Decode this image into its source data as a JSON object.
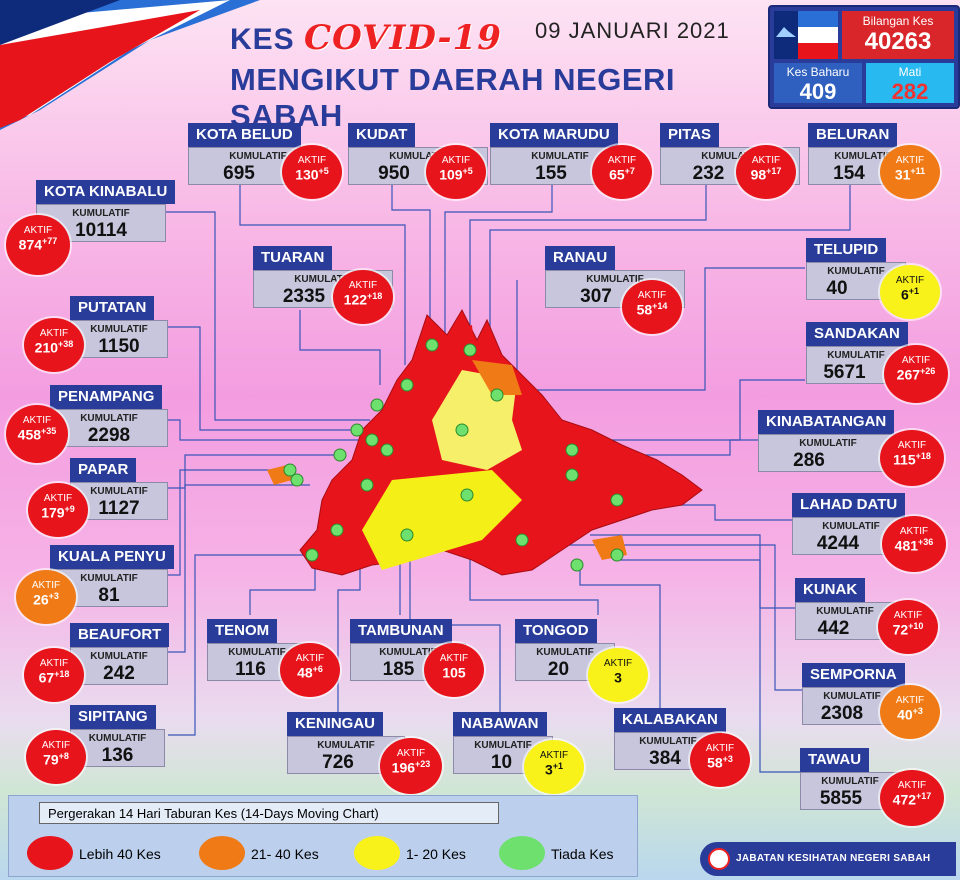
{
  "header": {
    "title_prefix": "KES",
    "title_covid": "COVID-19",
    "subtitle": "MENGIKUT DAERAH NEGERI SABAH",
    "date": "09 JANUARI 2021"
  },
  "stats": {
    "total_label": "Bilangan Kes",
    "total_value": "40263",
    "new_label": "Kes Baharu",
    "new_value": "409",
    "death_label": "Mati",
    "death_value": "282"
  },
  "labels": {
    "kumulatif": "KUMULATIF",
    "aktif": "AKTIF"
  },
  "colors": {
    "red": "#e8141c",
    "orange": "#f07a16",
    "yellow": "#f8f21a",
    "green": "#6ee06e",
    "navy": "#2a3c9a"
  },
  "districts": {
    "kota_belud": {
      "name": "KOTA BELUD",
      "kumulatif": "695",
      "aktif": "130",
      "aktif_new": "+5",
      "level": "red"
    },
    "kudat": {
      "name": "KUDAT",
      "kumulatif": "950",
      "aktif": "109",
      "aktif_new": "+5",
      "level": "red"
    },
    "kota_marudu": {
      "name": "KOTA MARUDU",
      "kumulatif": "155",
      "aktif": "65",
      "aktif_new": "+7",
      "level": "red"
    },
    "pitas": {
      "name": "PITAS",
      "kumulatif": "232",
      "aktif": "98",
      "aktif_new": "+17",
      "level": "red"
    },
    "beluran": {
      "name": "BELURAN",
      "kumulatif": "154",
      "aktif": "31",
      "aktif_new": "+11",
      "level": "orange"
    },
    "kota_kinabalu": {
      "name": "KOTA KINABALU",
      "kumulatif": "10114",
      "aktif": "874",
      "aktif_new": "+77",
      "level": "red"
    },
    "tuaran": {
      "name": "TUARAN",
      "kumulatif": "2335",
      "aktif": "122",
      "aktif_new": "+18",
      "level": "red"
    },
    "ranau": {
      "name": "RANAU",
      "kumulatif": "307",
      "aktif": "58",
      "aktif_new": "+14",
      "level": "red"
    },
    "telupid": {
      "name": "TELUPID",
      "kumulatif": "40",
      "aktif": "6",
      "aktif_new": "+1",
      "level": "yellow"
    },
    "putatan": {
      "name": "PUTATAN",
      "kumulatif": "1150",
      "aktif": "210",
      "aktif_new": "+38",
      "level": "red"
    },
    "sandakan": {
      "name": "SANDAKAN",
      "kumulatif": "5671",
      "aktif": "267",
      "aktif_new": "+26",
      "level": "red"
    },
    "penampang": {
      "name": "PENAMPANG",
      "kumulatif": "2298",
      "aktif": "458",
      "aktif_new": "+35",
      "level": "red"
    },
    "kinabatangan": {
      "name": "KINABATANGAN",
      "kumulatif": "286",
      "aktif": "115",
      "aktif_new": "+18",
      "level": "red"
    },
    "papar": {
      "name": "PAPAR",
      "kumulatif": "1127",
      "aktif": "179",
      "aktif_new": "+9",
      "level": "red"
    },
    "lahad_datu": {
      "name": "LAHAD DATU",
      "kumulatif": "4244",
      "aktif": "481",
      "aktif_new": "+36",
      "level": "red"
    },
    "kuala_penyu": {
      "name": "KUALA PENYU",
      "kumulatif": "81",
      "aktif": "26",
      "aktif_new": "+3",
      "level": "orange"
    },
    "kunak": {
      "name": "KUNAK",
      "kumulatif": "442",
      "aktif": "72",
      "aktif_new": "+10",
      "level": "red"
    },
    "beaufort": {
      "name": "BEAUFORT",
      "kumulatif": "242",
      "aktif": "67",
      "aktif_new": "+18",
      "level": "red"
    },
    "tenom": {
      "name": "TENOM",
      "kumulatif": "116",
      "aktif": "48",
      "aktif_new": "+6",
      "level": "red"
    },
    "tambunan": {
      "name": "TAMBUNAN",
      "kumulatif": "185",
      "aktif": "105",
      "aktif_new": "",
      "level": "red"
    },
    "tongod": {
      "name": "TONGOD",
      "kumulatif": "20",
      "aktif": "3",
      "aktif_new": "",
      "level": "yellow"
    },
    "semporna": {
      "name": "SEMPORNA",
      "kumulatif": "2308",
      "aktif": "40",
      "aktif_new": "+3",
      "level": "orange"
    },
    "sipitang": {
      "name": "SIPITANG",
      "kumulatif": "136",
      "aktif": "79",
      "aktif_new": "+8",
      "level": "red"
    },
    "keningau": {
      "name": "KENINGAU",
      "kumulatif": "726",
      "aktif": "196",
      "aktif_new": "+23",
      "level": "red"
    },
    "nabawan": {
      "name": "NABAWAN",
      "kumulatif": "10",
      "aktif": "3",
      "aktif_new": "+1",
      "level": "yellow"
    },
    "kalabakan": {
      "name": "KALABAKAN",
      "kumulatif": "384",
      "aktif": "58",
      "aktif_new": "+3",
      "level": "red"
    },
    "tawau": {
      "name": "TAWAU",
      "kumulatif": "5855",
      "aktif": "472",
      "aktif_new": "+17",
      "level": "red"
    }
  },
  "legend": {
    "title": "Pergerakan 14 Hari Taburan Kes (14-Days Moving Chart)",
    "items": [
      {
        "label": "Lebih 40 Kes",
        "color": "#e8141c"
      },
      {
        "label": "21- 40 Kes",
        "color": "#f07a16"
      },
      {
        "label": "1- 20 Kes",
        "color": "#f8f21a"
      },
      {
        "label": "Tiada Kes",
        "color": "#6ee06e"
      }
    ]
  },
  "footer": {
    "agency": "JABATAN KESIHATAN NEGERI SABAH"
  }
}
